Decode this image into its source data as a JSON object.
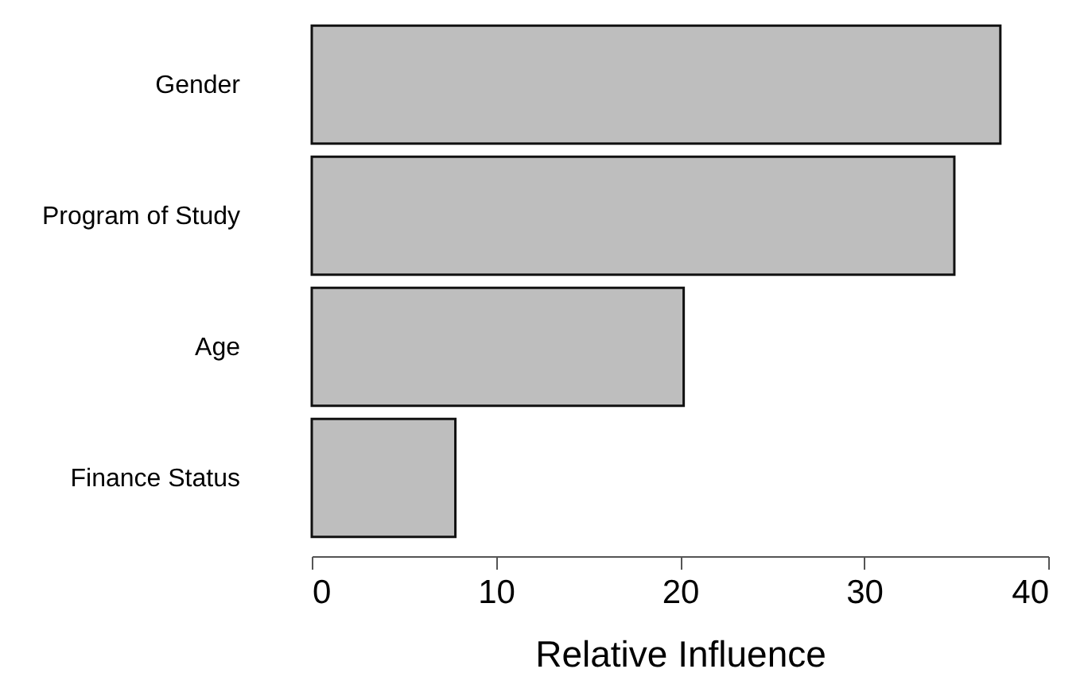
{
  "chart_data": {
    "type": "bar",
    "orientation": "horizontal",
    "xlabel": "Relative Influence",
    "categories": [
      "Gender",
      "Program of Study",
      "Age",
      "Finance Status"
    ],
    "values": [
      37.4,
      34.9,
      20.2,
      7.8
    ],
    "color": "#bebebe",
    "xlim": [
      0,
      40
    ],
    "xticks": [
      0,
      10,
      20,
      30,
      40
    ],
    "grid": false
  }
}
